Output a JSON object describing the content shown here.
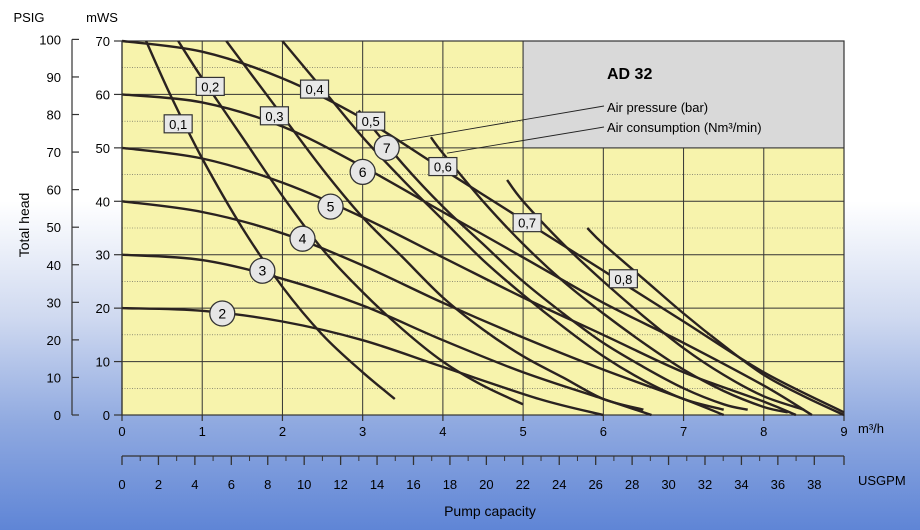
{
  "chart_data": {
    "type": "line",
    "title": "AD 32",
    "xlabel": "Pump capacity",
    "ylabel": "Total head",
    "x_unit_top": "m³/h",
    "x_unit_bottom": "USGPM",
    "y_unit_left": "PSIG",
    "y_unit_right": "mWS",
    "xlim": [
      0,
      9
    ],
    "ylim": [
      0,
      70
    ],
    "grid": true,
    "plot_color": "#f7f3ac",
    "inset_color": "#d9d9d9",
    "curve_color": "#2a2220",
    "x_ticks": [
      "0",
      "1",
      "2",
      "3",
      "4",
      "5",
      "6",
      "7",
      "8",
      "9"
    ],
    "mws_ticks": [
      "0",
      "10",
      "20",
      "30",
      "40",
      "50",
      "60",
      "70"
    ],
    "psig_ticks": [
      "0",
      "10",
      "20",
      "30",
      "40",
      "50",
      "60",
      "70",
      "80",
      "90",
      "100"
    ],
    "usgpm_ticks": [
      "0",
      "2",
      "4",
      "6",
      "8",
      "10",
      "12",
      "14",
      "16",
      "18",
      "20",
      "22",
      "24",
      "26",
      "28",
      "30",
      "32",
      "34",
      "36",
      "38"
    ],
    "legend": {
      "pressure": "Air pressure (bar)",
      "consumption": "Air consumption (Nm³/min)"
    },
    "pressure_series": [
      {
        "name": "2",
        "label_at": [
          1.25,
          19
        ],
        "points": [
          [
            0,
            20
          ],
          [
            1,
            19.5
          ],
          [
            2,
            17.5
          ],
          [
            3,
            14
          ],
          [
            4,
            9
          ],
          [
            5.2,
            3
          ],
          [
            6,
            0
          ]
        ]
      },
      {
        "name": "3",
        "label_at": [
          1.75,
          27
        ],
        "points": [
          [
            0,
            30
          ],
          [
            1,
            29
          ],
          [
            2,
            25.5
          ],
          [
            3,
            20.5
          ],
          [
            4,
            14
          ],
          [
            5,
            8
          ],
          [
            6,
            3
          ],
          [
            6.6,
            0
          ]
        ]
      },
      {
        "name": "4",
        "label_at": [
          2.25,
          33
        ],
        "points": [
          [
            0,
            40
          ],
          [
            1,
            38
          ],
          [
            2,
            34
          ],
          [
            3,
            28
          ],
          [
            4,
            21
          ],
          [
            5,
            14.5
          ],
          [
            6,
            8.5
          ],
          [
            7,
            3
          ],
          [
            7.5,
            0
          ]
        ]
      },
      {
        "name": "5",
        "label_at": [
          2.6,
          39
        ],
        "points": [
          [
            0,
            50
          ],
          [
            1,
            48
          ],
          [
            2,
            43.5
          ],
          [
            3,
            37
          ],
          [
            4,
            29.5
          ],
          [
            5,
            22
          ],
          [
            6,
            15
          ],
          [
            7,
            8
          ],
          [
            8,
            2.5
          ],
          [
            8.4,
            0
          ]
        ]
      },
      {
        "name": "6",
        "label_at": [
          3.0,
          45.5
        ],
        "points": [
          [
            0,
            60
          ],
          [
            1,
            58.5
          ],
          [
            2,
            54
          ],
          [
            3,
            46.5
          ],
          [
            4,
            38
          ],
          [
            5,
            29.5
          ],
          [
            6,
            21
          ],
          [
            7,
            13.5
          ],
          [
            8,
            5.5
          ],
          [
            8.6,
            0
          ]
        ]
      },
      {
        "name": "7",
        "label_at": [
          3.3,
          50
        ],
        "points": [
          [
            0,
            70
          ],
          [
            1,
            68
          ],
          [
            2,
            63
          ],
          [
            3,
            55.5
          ],
          [
            4,
            46
          ],
          [
            5,
            36.5
          ],
          [
            6,
            27
          ],
          [
            7,
            17.5
          ],
          [
            8,
            8
          ],
          [
            9,
            0.5
          ]
        ]
      }
    ],
    "consumption_series": [
      {
        "name": "0,1",
        "label_at": [
          0.7,
          54.5
        ],
        "points": [
          [
            0.3,
            70
          ],
          [
            0.6,
            60
          ],
          [
            1,
            48
          ],
          [
            1.5,
            35
          ],
          [
            2,
            24
          ],
          [
            2.5,
            15
          ],
          [
            3,
            8
          ],
          [
            3.4,
            3
          ]
        ]
      },
      {
        "name": "0,2",
        "label_at": [
          1.1,
          61.5
        ],
        "points": [
          [
            0.7,
            70
          ],
          [
            1,
            63
          ],
          [
            1.5,
            52
          ],
          [
            2,
            41
          ],
          [
            2.5,
            31
          ],
          [
            3,
            23
          ],
          [
            3.5,
            16
          ],
          [
            4,
            10
          ],
          [
            4.5,
            5.5
          ],
          [
            5,
            2
          ]
        ]
      },
      {
        "name": "0,3",
        "label_at": [
          1.9,
          56
        ],
        "points": [
          [
            1.3,
            70
          ],
          [
            1.6,
            64
          ],
          [
            2,
            56
          ],
          [
            2.5,
            46
          ],
          [
            3,
            37
          ],
          [
            3.5,
            29.5
          ],
          [
            4,
            22
          ],
          [
            4.5,
            16
          ],
          [
            5,
            11
          ],
          [
            5.5,
            7
          ],
          [
            6,
            3
          ],
          [
            6.5,
            1
          ]
        ]
      },
      {
        "name": "0,4",
        "label_at": [
          2.4,
          61
        ],
        "points": [
          [
            2.0,
            70
          ],
          [
            2.5,
            61
          ],
          [
            3,
            52
          ],
          [
            3.5,
            44
          ],
          [
            4,
            36.5
          ],
          [
            4.5,
            29
          ],
          [
            5,
            22.5
          ],
          [
            5.5,
            16.5
          ],
          [
            6,
            11
          ],
          [
            6.5,
            6.5
          ],
          [
            7,
            3
          ],
          [
            7.5,
            1
          ]
        ]
      },
      {
        "name": "0,5",
        "label_at": [
          3.1,
          55
        ],
        "points": [
          [
            2.95,
            57
          ],
          [
            3.5,
            47
          ],
          [
            4,
            39
          ],
          [
            4.5,
            32
          ],
          [
            5,
            25
          ],
          [
            5.5,
            19
          ],
          [
            6,
            13.5
          ],
          [
            6.5,
            9
          ],
          [
            7,
            5
          ],
          [
            7.5,
            2
          ],
          [
            7.8,
            1
          ]
        ]
      },
      {
        "name": "0,6",
        "label_at": [
          4.0,
          46.5
        ],
        "points": [
          [
            3.85,
            52
          ],
          [
            4,
            49
          ],
          [
            4.5,
            40
          ],
          [
            5,
            32
          ],
          [
            5.5,
            25
          ],
          [
            6,
            19
          ],
          [
            6.5,
            13.5
          ],
          [
            7,
            8.5
          ],
          [
            7.5,
            4.5
          ],
          [
            8,
            1.5
          ],
          [
            8.3,
            0.5
          ]
        ]
      },
      {
        "name": "0,7",
        "label_at": [
          5.05,
          36
        ],
        "points": [
          [
            4.8,
            44
          ],
          [
            5,
            40
          ],
          [
            5.5,
            32
          ],
          [
            6,
            25
          ],
          [
            6.5,
            18.5
          ],
          [
            7,
            12.5
          ],
          [
            7.5,
            7.5
          ],
          [
            8,
            3.5
          ],
          [
            8.5,
            1
          ]
        ]
      },
      {
        "name": "0,8",
        "label_at": [
          6.25,
          25.5
        ],
        "points": [
          [
            5.8,
            35
          ],
          [
            6,
            32
          ],
          [
            6.5,
            25.5
          ],
          [
            7,
            19
          ],
          [
            7.5,
            13
          ],
          [
            8,
            7.5
          ],
          [
            8.5,
            3.5
          ],
          [
            9,
            0
          ]
        ]
      }
    ]
  }
}
